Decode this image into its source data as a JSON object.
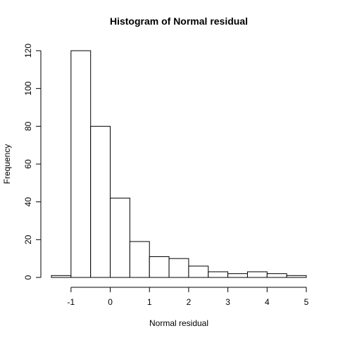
{
  "chart_data": {
    "type": "bar",
    "title": "Histogram of Normal residual",
    "xlabel": "Normal residual",
    "ylabel": "Frequency",
    "bins": [
      {
        "start": -1.5,
        "end": -1.0,
        "count": 1
      },
      {
        "start": -1.0,
        "end": -0.5,
        "count": 120
      },
      {
        "start": -0.5,
        "end": 0.0,
        "count": 80
      },
      {
        "start": 0.0,
        "end": 0.5,
        "count": 42
      },
      {
        "start": 0.5,
        "end": 1.0,
        "count": 19
      },
      {
        "start": 1.0,
        "end": 1.5,
        "count": 11
      },
      {
        "start": 1.5,
        "end": 2.0,
        "count": 10
      },
      {
        "start": 2.0,
        "end": 2.5,
        "count": 6
      },
      {
        "start": 2.5,
        "end": 3.0,
        "count": 3
      },
      {
        "start": 3.0,
        "end": 3.5,
        "count": 2
      },
      {
        "start": 3.5,
        "end": 4.0,
        "count": 3
      },
      {
        "start": 4.0,
        "end": 4.5,
        "count": 2
      },
      {
        "start": 4.5,
        "end": 5.0,
        "count": 1
      }
    ],
    "xticks": [
      "-1",
      "0",
      "1",
      "2",
      "3",
      "4",
      "5"
    ],
    "yticks": [
      "0",
      "20",
      "40",
      "60",
      "80",
      "100",
      "120"
    ],
    "xlim": [
      -1.5,
      5.0
    ],
    "ylim": [
      0,
      120
    ],
    "grid": false,
    "colors": {
      "bar_fill": "#ffffff",
      "bar_stroke": "#000000"
    }
  }
}
